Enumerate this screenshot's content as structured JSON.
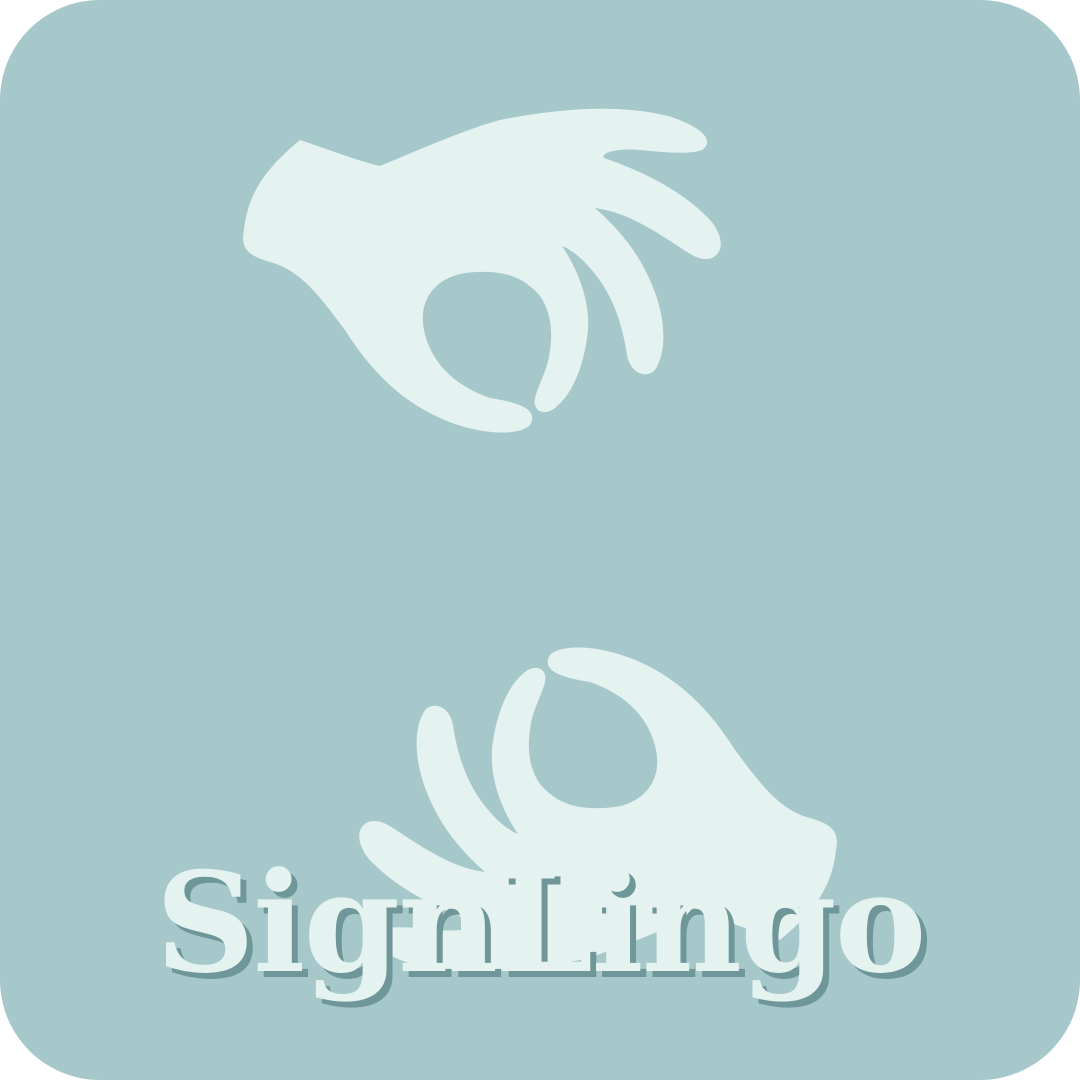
{
  "logo": {
    "icon": "sign-language-hands-icon",
    "app_name": "SignLingo"
  },
  "colors": {
    "background": "#a6c8cb",
    "foreground": "#e4f3f0",
    "text_shadow": "#6f9698"
  }
}
